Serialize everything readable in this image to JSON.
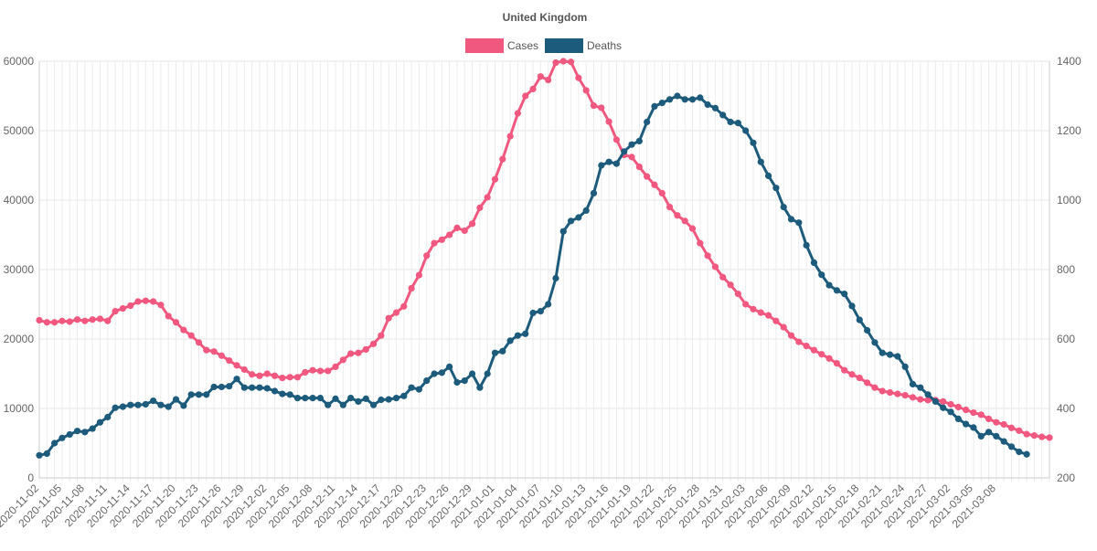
{
  "chart_data": {
    "type": "line",
    "title": "United Kingdom",
    "legend_position": "top-center",
    "x_start": "2020-11-02",
    "x_tick_labels": [
      "2020-11-02",
      "2020-11-05",
      "2020-11-08",
      "2020-11-11",
      "2020-11-14",
      "2020-11-17",
      "2020-11-20",
      "2020-11-23",
      "2020-11-26",
      "2020-11-29",
      "2020-12-02",
      "2020-12-05",
      "2020-12-08",
      "2020-12-11",
      "2020-12-14",
      "2020-12-17",
      "2020-12-20",
      "2020-12-23",
      "2020-12-26",
      "2020-12-29",
      "2021-01-01",
      "2021-01-04",
      "2021-01-07",
      "2021-01-10",
      "2021-01-13",
      "2021-01-16",
      "2021-01-19",
      "2021-01-22",
      "2021-01-25",
      "2021-01-28",
      "2021-01-31",
      "2021-02-03",
      "2021-02-06",
      "2021-02-09",
      "2021-02-12",
      "2021-02-15",
      "2021-02-18",
      "2021-02-21",
      "2021-02-24",
      "2021-02-27",
      "2021-03-02",
      "2021-03-05",
      "2021-03-08"
    ],
    "y_left": {
      "min": 0,
      "max": 60000,
      "step": 10000,
      "ticks": [
        "0",
        "10000",
        "20000",
        "30000",
        "40000",
        "50000",
        "60000"
      ]
    },
    "y_right": {
      "min": 200,
      "max": 1400,
      "step": 200,
      "ticks": [
        "200",
        "400",
        "600",
        "800",
        "1000",
        "1200",
        "1400"
      ]
    },
    "series": [
      {
        "name": "Cases",
        "axis": "left",
        "color": "#f0587f",
        "values": [
          22700,
          22400,
          22400,
          22600,
          22500,
          22800,
          22600,
          22800,
          22900,
          22600,
          24000,
          24400,
          24800,
          25400,
          25500,
          25400,
          24900,
          23300,
          22400,
          21300,
          20500,
          19500,
          18400,
          18200,
          17600,
          16900,
          16200,
          15600,
          14900,
          14700,
          15000,
          14700,
          14400,
          14500,
          14500,
          15200,
          15500,
          15400,
          15400,
          16000,
          17000,
          17900,
          18000,
          18500,
          19300,
          20500,
          23000,
          23800,
          24700,
          27300,
          29200,
          32000,
          33800,
          34300,
          35000,
          36000,
          35600,
          36600,
          38900,
          40400,
          43000,
          45900,
          49200,
          52500,
          55000,
          56000,
          57800,
          57300,
          59800,
          60000,
          59900,
          57600,
          55800,
          53600,
          53300,
          51300,
          48700,
          46500,
          46200,
          44800,
          43400,
          42200,
          41000,
          39000,
          37800,
          37000,
          35900,
          33800,
          32000,
          30400,
          28900,
          27800,
          26500,
          25000,
          24300,
          23800,
          23400,
          22600,
          21700,
          20500,
          19600,
          19000,
          18400,
          17800,
          17200,
          16500,
          15500,
          14900,
          14400,
          13700,
          13000,
          12500,
          12300,
          12100,
          11900,
          11600,
          11300,
          11200,
          11200,
          11000,
          10600,
          10200,
          9800,
          9400,
          9100,
          8500,
          8000,
          7700,
          7200,
          6800,
          6300,
          6100,
          5900,
          5800
        ]
      },
      {
        "name": "Deaths",
        "axis": "right",
        "color": "#1c5b7c",
        "values": [
          265,
          270,
          300,
          315,
          325,
          335,
          332,
          342,
          360,
          375,
          402,
          405,
          410,
          410,
          412,
          422,
          410,
          405,
          426,
          408,
          440,
          440,
          440,
          462,
          462,
          464,
          485,
          460,
          460,
          460,
          458,
          450,
          442,
          440,
          430,
          430,
          430,
          430,
          410,
          428,
          410,
          430,
          420,
          428,
          410,
          425,
          426,
          430,
          436,
          460,
          455,
          480,
          500,
          503,
          520,
          475,
          480,
          500,
          460,
          500,
          560,
          565,
          595,
          610,
          615,
          675,
          680,
          700,
          775,
          910,
          940,
          950,
          970,
          1020,
          1100,
          1110,
          1105,
          1140,
          1160,
          1170,
          1225,
          1270,
          1280,
          1290,
          1300,
          1290,
          1290,
          1295,
          1275,
          1265,
          1245,
          1225,
          1222,
          1200,
          1165,
          1110,
          1070,
          1035,
          980,
          945,
          935,
          870,
          820,
          785,
          755,
          740,
          730,
          695,
          655,
          625,
          590,
          560,
          555,
          550,
          520,
          470,
          460,
          440,
          420,
          402,
          390,
          370,
          355,
          345,
          320,
          332,
          320,
          305,
          290,
          275,
          268
        ]
      }
    ]
  }
}
